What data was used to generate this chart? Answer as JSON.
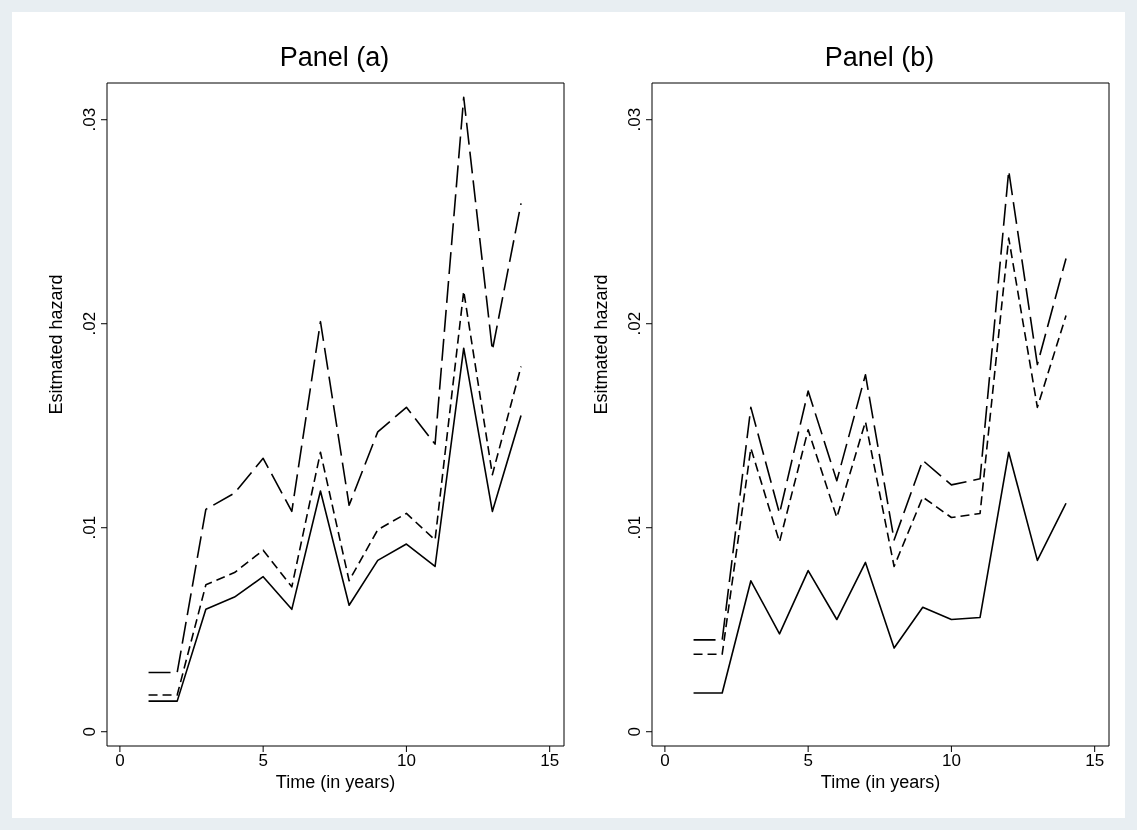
{
  "chart_data": [
    {
      "type": "line",
      "title": "Panel (a)",
      "xlabel": "Time (in years)",
      "ylabel": "Esitmated hazard",
      "x": [
        1,
        2,
        3,
        4,
        5,
        6,
        7,
        8,
        9,
        10,
        11,
        12,
        13,
        14
      ],
      "series": [
        {
          "color": "#000000",
          "line_style": "solid",
          "values": [
            0.0015,
            0.0015,
            0.006,
            0.0066,
            0.0076,
            0.006,
            0.0118,
            0.0062,
            0.0084,
            0.0092,
            0.0081,
            0.0188,
            0.0108,
            0.0155
          ]
        },
        {
          "color": "#000000",
          "line_style": "dashed",
          "values": [
            0.0018,
            0.0018,
            0.0072,
            0.0078,
            0.0089,
            0.0071,
            0.0137,
            0.0074,
            0.0099,
            0.0107,
            0.0094,
            0.0216,
            0.0126,
            0.0179
          ]
        },
        {
          "color": "#000000",
          "line_style": "dashed",
          "values": [
            0.0029,
            0.0029,
            0.0109,
            0.0117,
            0.0134,
            0.0108,
            0.0201,
            0.0111,
            0.0147,
            0.0159,
            0.0141,
            0.0311,
            0.0187,
            0.0259
          ]
        }
      ],
      "xlim": [
        -0.45,
        15.5
      ],
      "xticks": [
        0,
        5,
        10,
        15
      ],
      "ylim": [
        -0.0007,
        0.0318
      ],
      "yticks": [
        0,
        {
          "value": 0.01,
          "label": ".01"
        },
        {
          "value": 0.02,
          "label": ".02"
        },
        {
          "value": 0.03,
          "label": ".03"
        }
      ],
      "grid": false,
      "legend": false,
      "marker": "none"
    },
    {
      "type": "line",
      "title": "Panel (b)",
      "xlabel": "Time (in years)",
      "ylabel": "Esitmated hazard",
      "x": [
        1,
        2,
        3,
        4,
        5,
        6,
        7,
        8,
        9,
        10,
        11,
        12,
        13,
        14
      ],
      "series": [
        {
          "color": "#000000",
          "line_style": "solid",
          "values": [
            0.0019,
            0.0019,
            0.0074,
            0.0048,
            0.0079,
            0.0055,
            0.0083,
            0.0041,
            0.0061,
            0.0055,
            0.0056,
            0.0137,
            0.0084,
            0.0112
          ]
        },
        {
          "color": "#000000",
          "line_style": "dashed",
          "values": [
            0.0038,
            0.0038,
            0.0139,
            0.0093,
            0.0148,
            0.0105,
            0.0152,
            0.0081,
            0.0115,
            0.0105,
            0.0107,
            0.0242,
            0.0159,
            0.0204
          ]
        },
        {
          "color": "#000000",
          "line_style": "dashed",
          "values": [
            0.0045,
            0.0045,
            0.0159,
            0.0107,
            0.0167,
            0.0123,
            0.0175,
            0.0094,
            0.0133,
            0.0121,
            0.0124,
            0.0275,
            0.018,
            0.0232
          ]
        }
      ],
      "xlim": [
        -0.45,
        15.5
      ],
      "xticks": [
        0,
        5,
        10,
        15
      ],
      "ylim": [
        -0.0007,
        0.0318
      ],
      "yticks": [
        0,
        {
          "value": 0.01,
          "label": ".01"
        },
        {
          "value": 0.02,
          "label": ".02"
        },
        {
          "value": 0.03,
          "label": ".03"
        }
      ],
      "grid": false,
      "legend": false,
      "marker": "none"
    }
  ]
}
